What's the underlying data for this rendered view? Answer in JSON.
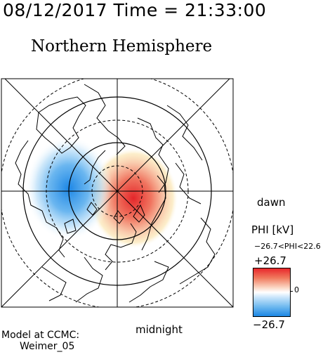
{
  "header": {
    "datetime": "08/12/2017 Time = 21:33:00"
  },
  "title": "Northern Hemisphere",
  "labels": {
    "dawn": "dawn",
    "midnight": "midnight"
  },
  "legend": {
    "quantity": "PHI [kV]",
    "range": "−26.7<PHI<22.6",
    "max": "+26.7",
    "zero": "0",
    "min": "−26.7",
    "colors": {
      "positive": "#e8272b",
      "neutral": "#ffffff",
      "negative": "#1a86e4"
    }
  },
  "credit": {
    "line1": "Model at CCMC:",
    "line2": "Weimer_05"
  }
}
